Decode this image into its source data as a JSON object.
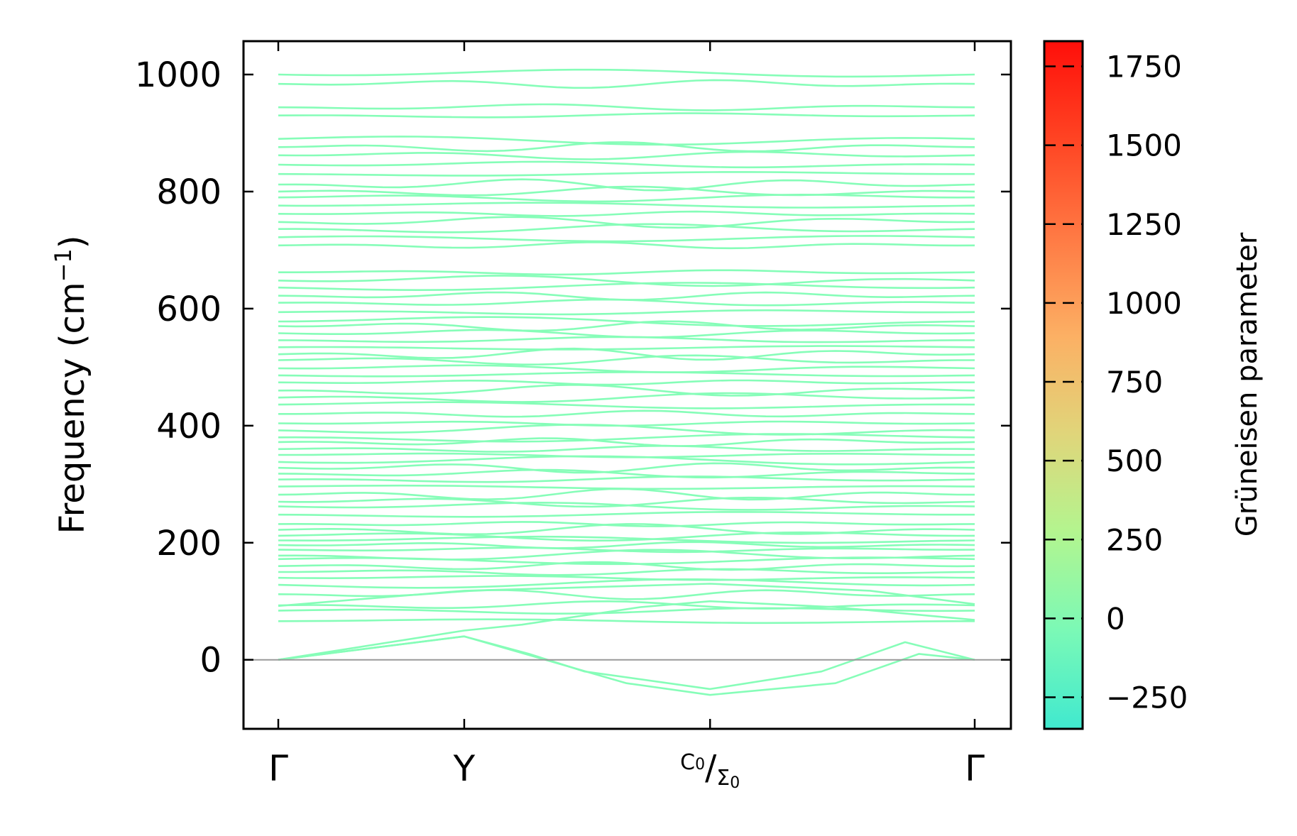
{
  "chart_data": {
    "type": "line",
    "title": "",
    "ylabel": "Frequency (cm",
    "ylabel_sup": "−1",
    "ylabel_close": ")",
    "xlabel": "",
    "ylim": [
      -118,
      1057
    ],
    "yticks": [
      0,
      200,
      400,
      600,
      800,
      1000
    ],
    "ytick_labels": [
      "0",
      "200",
      "400",
      "600",
      "800",
      "1000"
    ],
    "kpath": [
      {
        "label": "Γ",
        "pos": 0.0
      },
      {
        "label": "Y",
        "pos": 0.267
      },
      {
        "label": "C",
        "sub": "0",
        "label2": "Σ",
        "sub2": "0",
        "pos": 0.62
      },
      {
        "label": "Γ",
        "pos": 1.0
      }
    ],
    "zero_line": 0,
    "band_color": "#86fdb8",
    "flat_band_frequencies": [
      66,
      84,
      93,
      112,
      128,
      140,
      150,
      160,
      172,
      178,
      188,
      196,
      204,
      212,
      222,
      232,
      248,
      262,
      270,
      282,
      296,
      308,
      318,
      328,
      338,
      350,
      360,
      372,
      380,
      392,
      404,
      420,
      436,
      448,
      460,
      474,
      486,
      498,
      512,
      522,
      534,
      546,
      558,
      570,
      578,
      594,
      610,
      622,
      636,
      648,
      662,
      708,
      722,
      736,
      748,
      762,
      776,
      790,
      800,
      812,
      830,
      846,
      862,
      876,
      890,
      930,
      944,
      984,
      1000
    ],
    "acoustic_bands": [
      {
        "k": [
          0.0,
          0.267,
          0.35,
          0.52,
          0.62,
          0.8,
          1.0
        ],
        "f": [
          0,
          50,
          60,
          90,
          100,
          90,
          68
        ]
      },
      {
        "k": [
          0.0,
          0.267,
          0.36,
          0.44,
          0.62,
          0.78,
          0.9,
          1.0
        ],
        "f": [
          0,
          40,
          10,
          -20,
          -50,
          -20,
          30,
          0
        ]
      },
      {
        "k": [
          0.0,
          0.267,
          0.5,
          0.62,
          0.8,
          0.92,
          1.0
        ],
        "f": [
          0,
          40,
          -40,
          -60,
          -40,
          10,
          0
        ]
      },
      {
        "k": [
          0.0,
          0.267,
          0.62,
          0.85,
          1.0
        ],
        "f": [
          92,
          118,
          130,
          118,
          95
        ]
      }
    ],
    "colorbar": {
      "label": "Grüneisen parameter",
      "range": [
        -350,
        1830
      ],
      "ticks": [
        -250,
        0,
        250,
        500,
        750,
        1000,
        1250,
        1500,
        1750
      ],
      "tick_labels": [
        "−250",
        "0",
        "250",
        "500",
        "750",
        "1000",
        "1250",
        "1500",
        "1750"
      ],
      "colors": [
        "#40e9cf",
        "#7bf9b6",
        "#b3f58f",
        "#e0d57a",
        "#fcb064",
        "#ff7a44",
        "#ff4423",
        "#ff0f0a"
      ]
    }
  }
}
